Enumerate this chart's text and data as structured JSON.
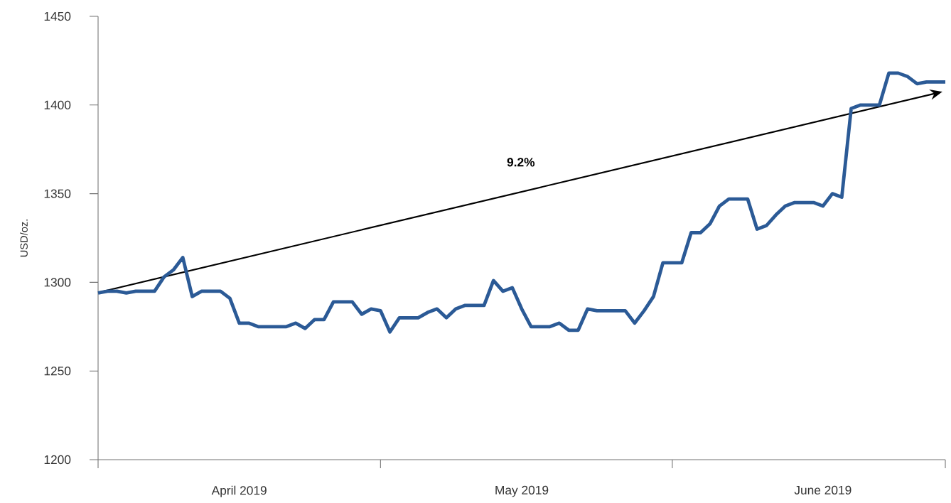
{
  "chart_data": {
    "type": "line",
    "ylabel": "USD/oz.",
    "annotations": [
      "9.2%"
    ],
    "marker": "none",
    "line_style": "solid",
    "x": [
      "2019-04-01",
      "2019-04-02",
      "2019-04-03",
      "2019-04-04",
      "2019-04-05",
      "2019-04-07",
      "2019-04-08",
      "2019-04-09",
      "2019-04-10",
      "2019-04-11",
      "2019-04-12",
      "2019-04-14",
      "2019-04-15",
      "2019-04-16",
      "2019-04-17",
      "2019-04-18",
      "2019-04-21",
      "2019-04-22",
      "2019-04-23",
      "2019-04-24",
      "2019-04-25",
      "2019-04-26",
      "2019-04-28",
      "2019-04-29",
      "2019-04-30",
      "2019-05-01",
      "2019-05-02",
      "2019-05-03",
      "2019-05-05",
      "2019-05-06",
      "2019-05-07",
      "2019-05-08",
      "2019-05-09",
      "2019-05-10",
      "2019-05-12",
      "2019-05-13",
      "2019-05-14",
      "2019-05-15",
      "2019-05-16",
      "2019-05-17",
      "2019-05-19",
      "2019-05-20",
      "2019-05-21",
      "2019-05-22",
      "2019-05-23",
      "2019-05-24",
      "2019-05-27",
      "2019-05-28",
      "2019-05-29",
      "2019-05-30",
      "2019-05-31",
      "2019-06-02",
      "2019-06-03",
      "2019-06-04",
      "2019-06-05",
      "2019-06-06",
      "2019-06-07",
      "2019-06-09",
      "2019-06-10",
      "2019-06-11",
      "2019-06-12",
      "2019-06-13",
      "2019-06-14",
      "2019-06-16",
      "2019-06-17",
      "2019-06-18",
      "2019-06-19",
      "2019-06-20",
      "2019-06-21",
      "2019-06-23",
      "2019-06-24",
      "2019-06-25",
      "2019-06-26",
      "2019-06-27",
      "2019-06-28",
      "2019-06-30"
    ],
    "series": [
      {
        "color": "#2b5a96",
        "values": [
          1294,
          1295,
          1295,
          1294,
          1295,
          1295,
          1303,
          1307,
          1314,
          1292,
          1295,
          1295,
          1291,
          1277,
          1277,
          1275,
          1275,
          1277,
          1274,
          1279,
          1279,
          1289,
          1289,
          1282,
          1285,
          1284,
          1272,
          1280,
          1280,
          1283,
          1285,
          1280,
          1285,
          1287,
          1287,
          1301,
          1295,
          1297,
          1285,
          1275,
          1275,
          1277,
          1273,
          1273,
          1285,
          1284,
          1284,
          1277,
          1284,
          1292,
          1311,
          1311,
          1328,
          1328,
          1333,
          1343,
          1347,
          1347,
          1330,
          1332,
          1338,
          1343,
          1345,
          1345,
          1343,
          1350,
          1348,
          1398,
          1400,
          1400,
          1418,
          1418,
          1416,
          1412,
          1413,
          1413
        ]
      }
    ],
    "xlim": [
      "2019-04-01",
      "2019-06-30"
    ],
    "xticks": [
      {
        "value": "2019-04-01",
        "label": null
      },
      {
        "value": "2019-04-16",
        "label": "April 2019"
      },
      {
        "value": "2019-05-01",
        "label": null
      },
      {
        "value": "2019-05-16",
        "label": "May 2019"
      },
      {
        "value": "2019-06-01",
        "label": null
      },
      {
        "value": "2019-06-17",
        "label": "June 2019"
      },
      {
        "value": "2019-06-30",
        "label": null
      }
    ],
    "ylim": [
      1200,
      1450
    ],
    "yticks": [
      1200,
      1250,
      1300,
      1350,
      1400,
      1450
    ]
  }
}
